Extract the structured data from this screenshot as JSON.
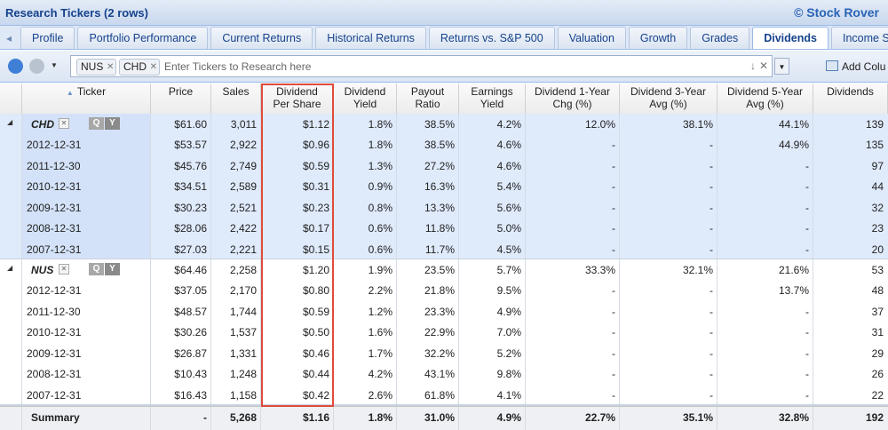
{
  "header": {
    "title": "Research Tickers (2 rows)",
    "brand": "© Stock Rover"
  },
  "tabs": [
    {
      "label": "Profile",
      "active": false
    },
    {
      "label": "Portfolio Performance",
      "active": false
    },
    {
      "label": "Current Returns",
      "active": false
    },
    {
      "label": "Historical Returns",
      "active": false
    },
    {
      "label": "Returns vs. S&P 500",
      "active": false
    },
    {
      "label": "Valuation",
      "active": false
    },
    {
      "label": "Growth",
      "active": false
    },
    {
      "label": "Grades",
      "active": false
    },
    {
      "label": "Dividends",
      "active": true
    },
    {
      "label": "Income State",
      "active": false
    }
  ],
  "toolbar": {
    "tickers": [
      "NUS",
      "CHD"
    ],
    "placeholder": "Enter Tickers to Research here",
    "add_button": "Add Colu"
  },
  "table": {
    "columns": [
      [
        "Ticker"
      ],
      [
        "Price"
      ],
      [
        "Sales"
      ],
      [
        "Dividend",
        "Per Share"
      ],
      [
        "Dividend",
        "Yield"
      ],
      [
        "Payout",
        "Ratio"
      ],
      [
        "Earnings",
        "Yield"
      ],
      [
        "Dividend 1-Year",
        "Chg (%)"
      ],
      [
        "Dividend 3-Year",
        "Avg (%)"
      ],
      [
        "Dividend 5-Year",
        "Avg (%)"
      ],
      [
        "Dividends"
      ]
    ],
    "groups": [
      {
        "ticker": "CHD",
        "buttons": [
          "Q",
          "Y"
        ],
        "values": [
          "$61.60",
          "3,011",
          "$1.12",
          "1.8%",
          "38.5%",
          "4.2%",
          "12.0%",
          "38.1%",
          "44.1%",
          "139"
        ],
        "history": [
          {
            "date": "2012-12-31",
            "values": [
              "$53.57",
              "2,922",
              "$0.96",
              "1.8%",
              "38.5%",
              "4.6%",
              "-",
              "-",
              "44.9%",
              "135"
            ]
          },
          {
            "date": "2011-12-30",
            "values": [
              "$45.76",
              "2,749",
              "$0.59",
              "1.3%",
              "27.2%",
              "4.6%",
              "-",
              "-",
              "-",
              "97"
            ]
          },
          {
            "date": "2010-12-31",
            "values": [
              "$34.51",
              "2,589",
              "$0.31",
              "0.9%",
              "16.3%",
              "5.4%",
              "-",
              "-",
              "-",
              "44"
            ]
          },
          {
            "date": "2009-12-31",
            "values": [
              "$30.23",
              "2,521",
              "$0.23",
              "0.8%",
              "13.3%",
              "5.6%",
              "-",
              "-",
              "-",
              "32"
            ]
          },
          {
            "date": "2008-12-31",
            "values": [
              "$28.06",
              "2,422",
              "$0.17",
              "0.6%",
              "11.8%",
              "5.0%",
              "-",
              "-",
              "-",
              "23"
            ]
          },
          {
            "date": "2007-12-31",
            "values": [
              "$27.03",
              "2,221",
              "$0.15",
              "0.6%",
              "11.7%",
              "4.5%",
              "-",
              "-",
              "-",
              "20"
            ]
          }
        ]
      },
      {
        "ticker": "NUS",
        "buttons": [
          "Q",
          "Y"
        ],
        "values": [
          "$64.46",
          "2,258",
          "$1.20",
          "1.9%",
          "23.5%",
          "5.7%",
          "33.3%",
          "32.1%",
          "21.6%",
          "53"
        ],
        "history": [
          {
            "date": "2012-12-31",
            "values": [
              "$37.05",
              "2,170",
              "$0.80",
              "2.2%",
              "21.8%",
              "9.5%",
              "-",
              "-",
              "13.7%",
              "48"
            ]
          },
          {
            "date": "2011-12-30",
            "values": [
              "$48.57",
              "1,744",
              "$0.59",
              "1.2%",
              "23.3%",
              "4.9%",
              "-",
              "-",
              "-",
              "37"
            ]
          },
          {
            "date": "2010-12-31",
            "values": [
              "$30.26",
              "1,537",
              "$0.50",
              "1.6%",
              "22.9%",
              "7.0%",
              "-",
              "-",
              "-",
              "31"
            ]
          },
          {
            "date": "2009-12-31",
            "values": [
              "$26.87",
              "1,331",
              "$0.46",
              "1.7%",
              "32.2%",
              "5.2%",
              "-",
              "-",
              "-",
              "29"
            ]
          },
          {
            "date": "2008-12-31",
            "values": [
              "$10.43",
              "1,248",
              "$0.44",
              "4.2%",
              "43.1%",
              "9.8%",
              "-",
              "-",
              "-",
              "26"
            ]
          },
          {
            "date": "2007-12-31",
            "values": [
              "$16.43",
              "1,158",
              "$0.42",
              "2.6%",
              "61.8%",
              "4.1%",
              "-",
              "-",
              "-",
              "22"
            ]
          }
        ]
      }
    ],
    "summary": {
      "label": "Summary",
      "values": [
        "-",
        "5,268",
        "$1.16",
        "1.8%",
        "31.0%",
        "4.9%",
        "22.7%",
        "35.1%",
        "32.8%",
        "192"
      ]
    }
  }
}
